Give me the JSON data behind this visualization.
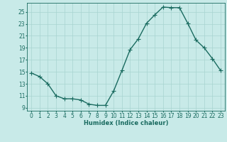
{
  "x": [
    0,
    1,
    2,
    3,
    4,
    5,
    6,
    7,
    8,
    9,
    10,
    11,
    12,
    13,
    14,
    15,
    16,
    17,
    18,
    19,
    20,
    21,
    22,
    23
  ],
  "y": [
    14.8,
    14.2,
    13.0,
    11.0,
    10.5,
    10.5,
    10.3,
    9.6,
    9.4,
    9.4,
    11.8,
    15.2,
    18.7,
    20.5,
    23.1,
    24.5,
    25.8,
    25.7,
    25.7,
    23.1,
    20.3,
    19.0,
    17.2,
    15.2
  ],
  "xlabel": "Humidex (Indice chaleur)",
  "xlim": [
    -0.5,
    23.5
  ],
  "ylim": [
    8.5,
    26.5
  ],
  "yticks": [
    9,
    11,
    13,
    15,
    17,
    19,
    21,
    23,
    25
  ],
  "xticks": [
    0,
    1,
    2,
    3,
    4,
    5,
    6,
    7,
    8,
    9,
    10,
    11,
    12,
    13,
    14,
    15,
    16,
    17,
    18,
    19,
    20,
    21,
    22,
    23
  ],
  "bg_color": "#c8eae8",
  "line_color": "#1a6b60",
  "grid_color": "#a8d4d0",
  "font_color": "#1a6b60",
  "marker": "+",
  "linewidth": 1.0,
  "markersize": 4,
  "xlabel_fontsize": 6.0,
  "tick_fontsize": 5.5
}
